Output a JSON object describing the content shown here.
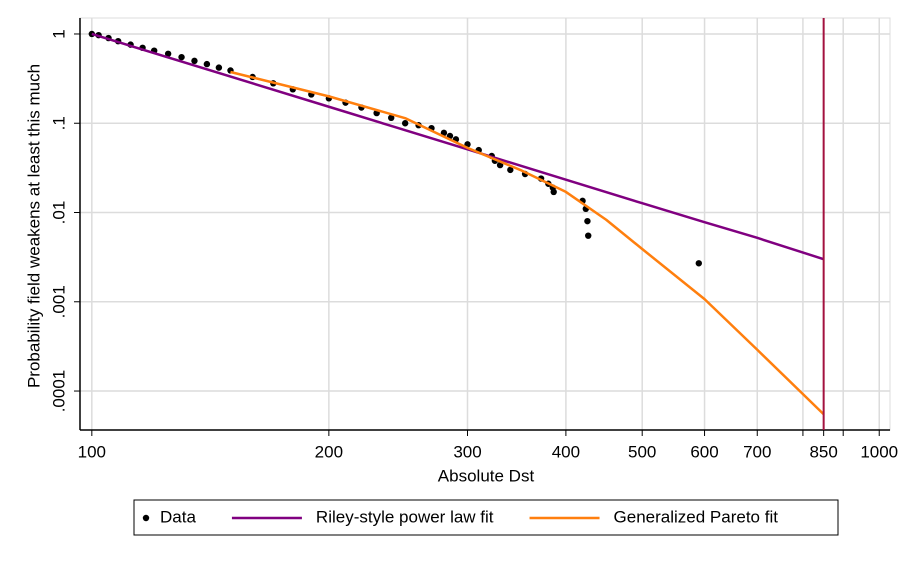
{
  "chart_data": {
    "type": "line",
    "x_label": "Absolute Dst",
    "y_label": "Probability field weakens at least this much",
    "xscale": "log",
    "yscale": "log",
    "grid": true,
    "xlim": [
      96.6,
      1032
    ],
    "ylim": [
      3.66e-05,
      1.51
    ],
    "xticks": [
      100,
      200,
      300,
      400,
      500,
      600,
      700,
      850,
      1000
    ],
    "xminor_ticks": [
      800,
      900
    ],
    "yticks": [
      {
        "value": 1,
        "label": "1"
      },
      {
        "value": 0.1,
        "label": ".1"
      },
      {
        "value": 0.01,
        "label": ".01"
      },
      {
        "value": 0.001,
        "label": ".001"
      },
      {
        "value": 0.0001,
        "label": ".0001"
      }
    ],
    "vline": {
      "x": 850,
      "color": "#a3123f"
    },
    "legend": "bottom",
    "series": [
      {
        "name": "Data",
        "type": "scatter",
        "color": "#000000",
        "x": [
          100,
          102,
          105,
          108,
          112,
          116,
          120,
          125,
          130,
          135,
          140,
          145,
          150,
          160,
          170,
          180,
          190,
          200,
          210,
          220,
          230,
          240,
          250,
          260,
          270,
          280,
          285,
          290,
          300,
          310,
          322,
          325,
          330,
          340,
          355,
          372,
          380,
          385,
          386,
          420,
          424,
          426,
          427,
          590
        ],
        "values": [
          1,
          0.97,
          0.9,
          0.83,
          0.76,
          0.7,
          0.65,
          0.6,
          0.55,
          0.5,
          0.46,
          0.42,
          0.39,
          0.33,
          0.28,
          0.24,
          0.21,
          0.19,
          0.17,
          0.15,
          0.13,
          0.115,
          0.1,
          0.095,
          0.088,
          0.078,
          0.072,
          0.066,
          0.058,
          0.05,
          0.043,
          0.038,
          0.034,
          0.03,
          0.027,
          0.024,
          0.021,
          0.019,
          0.017,
          0.0135,
          0.011,
          0.008,
          0.0055,
          0.0027
        ]
      },
      {
        "name": "Riley-style power law fit",
        "type": "line",
        "color": "#800080",
        "x": [
          100,
          200,
          300,
          400,
          500,
          600,
          700,
          850
        ],
        "values": [
          1,
          0.153,
          0.051,
          0.0233,
          0.0127,
          0.0078,
          0.0052,
          0.003
        ]
      },
      {
        "name": "Generalized Pareto fit",
        "type": "line",
        "color": "#ff7f0e",
        "x": [
          150,
          200,
          250,
          300,
          350,
          400,
          450,
          500,
          600,
          700,
          850
        ],
        "values": [
          0.375,
          0.2,
          0.114,
          0.053,
          0.03,
          0.017,
          0.0083,
          0.0039,
          0.00107,
          0.00029,
          5.5e-05
        ]
      }
    ]
  }
}
